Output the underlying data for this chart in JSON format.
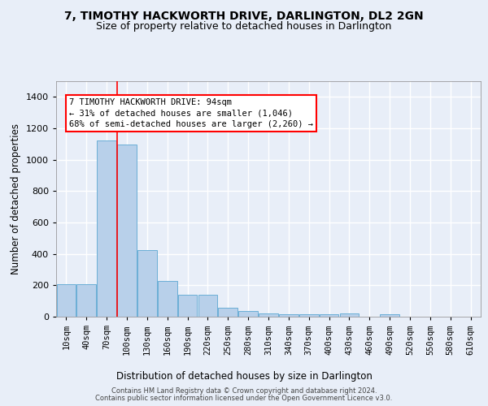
{
  "title1": "7, TIMOTHY HACKWORTH DRIVE, DARLINGTON, DL2 2GN",
  "title2": "Size of property relative to detached houses in Darlington",
  "xlabel": "Distribution of detached houses by size in Darlington",
  "ylabel": "Number of detached properties",
  "bar_color": "#b8d0ea",
  "bar_edge_color": "#6aaed6",
  "categories": [
    "10sqm",
    "40sqm",
    "70sqm",
    "100sqm",
    "130sqm",
    "160sqm",
    "190sqm",
    "220sqm",
    "250sqm",
    "280sqm",
    "310sqm",
    "340sqm",
    "370sqm",
    "400sqm",
    "430sqm",
    "460sqm",
    "490sqm",
    "520sqm",
    "550sqm",
    "580sqm",
    "610sqm"
  ],
  "values": [
    205,
    205,
    1120,
    1095,
    425,
    230,
    140,
    140,
    58,
    38,
    20,
    13,
    13,
    13,
    20,
    0,
    13,
    0,
    0,
    0,
    0
  ],
  "ylim": [
    0,
    1500
  ],
  "yticks": [
    0,
    200,
    400,
    600,
    800,
    1000,
    1200,
    1400
  ],
  "vline_x_idx": 3,
  "annotation_text": "7 TIMOTHY HACKWORTH DRIVE: 94sqm\n← 31% of detached houses are smaller (1,046)\n68% of semi-detached houses are larger (2,260) →",
  "background_color": "#e8eef8",
  "grid_color": "#ffffff",
  "footer1": "Contains HM Land Registry data © Crown copyright and database right 2024.",
  "footer2": "Contains public sector information licensed under the Open Government Licence v3.0."
}
